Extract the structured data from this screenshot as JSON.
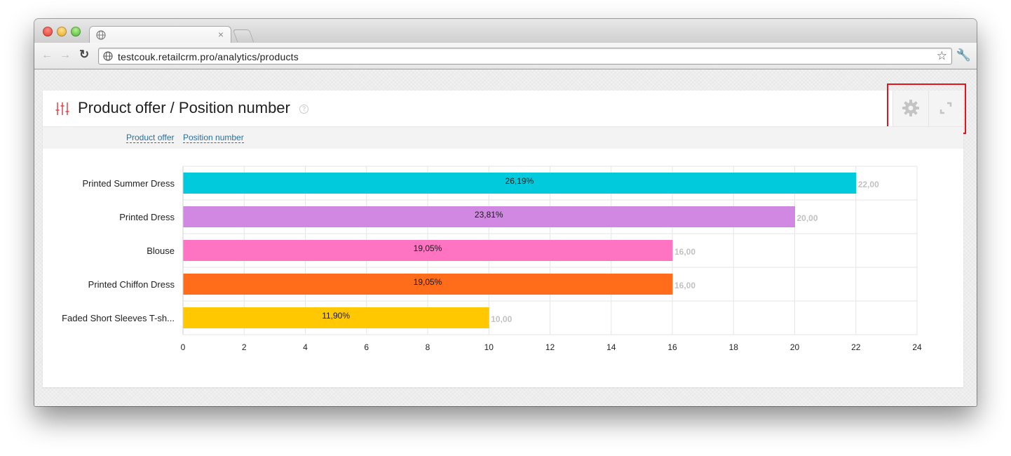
{
  "browser": {
    "tab_title": "",
    "url": "testcouk.retailcrm.pro/analytics/products",
    "tab_close": "×"
  },
  "card": {
    "title": "Product offer / Position number",
    "help": "?",
    "links": [
      "Product offer",
      "Position number"
    ]
  },
  "chart_data": {
    "type": "bar",
    "orientation": "horizontal",
    "categories": [
      "Printed Summer Dress",
      "Printed Dress",
      "Blouse",
      "Printed Chiffon Dress",
      "Faded Short Sleeves T-sh..."
    ],
    "values": [
      22,
      20,
      16,
      16,
      10
    ],
    "value_labels": [
      "22,00",
      "20,00",
      "16,00",
      "16,00",
      "10,00"
    ],
    "percent_labels": [
      "26,19%",
      "23,81%",
      "19,05%",
      "19,05%",
      "11,90%"
    ],
    "colors": [
      "#00cadc",
      "#d088e2",
      "#ff74c2",
      "#ff6d1b",
      "#ffc800"
    ],
    "xlim": [
      0,
      24
    ],
    "xticks": [
      0,
      2,
      4,
      6,
      8,
      10,
      12,
      14,
      16,
      18,
      20,
      22,
      24
    ],
    "grid": true
  }
}
